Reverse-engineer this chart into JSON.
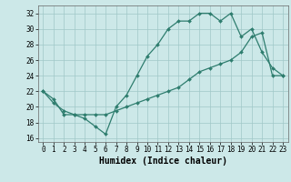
{
  "line1_x": [
    0,
    1,
    2,
    3,
    4,
    5,
    6,
    7,
    8,
    9,
    10,
    11,
    12,
    13,
    14,
    15,
    16,
    17,
    18,
    19,
    20,
    21,
    22,
    23
  ],
  "line1_y": [
    22,
    21,
    19,
    19,
    18.5,
    17.5,
    16.5,
    20,
    21.5,
    24,
    26.5,
    28,
    30,
    31,
    31,
    32,
    32,
    31,
    32,
    29,
    30,
    27,
    25,
    24
  ],
  "line2_x": [
    0,
    1,
    2,
    3,
    4,
    5,
    6,
    7,
    8,
    9,
    10,
    11,
    12,
    13,
    14,
    15,
    16,
    17,
    18,
    19,
    20,
    21,
    22,
    23
  ],
  "line2_y": [
    22,
    20.5,
    19.5,
    19,
    19,
    19,
    19,
    19.5,
    20,
    20.5,
    21,
    21.5,
    22,
    22.5,
    23.5,
    24.5,
    25,
    25.5,
    26,
    27,
    29,
    29.5,
    24,
    24
  ],
  "line_color": "#2e7d6e",
  "bg_color": "#cce8e8",
  "grid_color": "#a0c8c8",
  "xlabel": "Humidex (Indice chaleur)",
  "xlim": [
    -0.5,
    23.5
  ],
  "ylim": [
    15.5,
    33.0
  ],
  "yticks": [
    16,
    18,
    20,
    22,
    24,
    26,
    28,
    30,
    32
  ],
  "xticks": [
    0,
    1,
    2,
    3,
    4,
    5,
    6,
    7,
    8,
    9,
    10,
    11,
    12,
    13,
    14,
    15,
    16,
    17,
    18,
    19,
    20,
    21,
    22,
    23
  ],
  "marker": "D",
  "markersize": 2.0,
  "linewidth": 0.9,
  "xlabel_fontsize": 7,
  "tick_fontsize": 5.5
}
